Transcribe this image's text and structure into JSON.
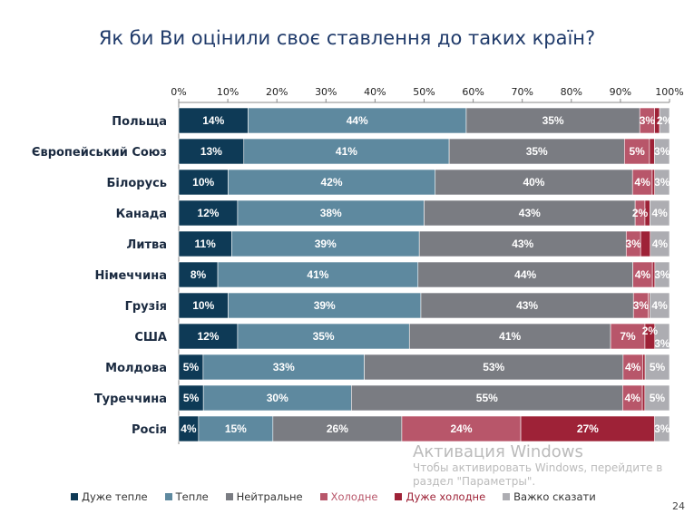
{
  "chart_data": {
    "type": "stacked-bar-horizontal",
    "title": "Як би Ви оцінили своє ставлення до таких країн?",
    "xlim": [
      0,
      100
    ],
    "x_ticks": [
      "0%",
      "10%",
      "20%",
      "30%",
      "40%",
      "50%",
      "60%",
      "70%",
      "80%",
      "90%",
      "100%"
    ],
    "legend_position": "bottom",
    "categories": [
      "Польща",
      "Європейський Союз",
      "Білорусь",
      "Канада",
      "Литва",
      "Німеччина",
      "Грузія",
      "США",
      "Молдова",
      "Туреччина",
      "Росія"
    ],
    "series": [
      {
        "name": "Дуже тепле",
        "color": "#0e3a56",
        "values": [
          14,
          13,
          10,
          12,
          11,
          8,
          10,
          12,
          5,
          5,
          4
        ],
        "labels": [
          "14%",
          "13%",
          "10%",
          "12%",
          "11%",
          "8%",
          "10%",
          "12%",
          "5%",
          "5%",
          "4%"
        ]
      },
      {
        "name": "Тепле",
        "color": "#5e899f",
        "values": [
          44,
          41,
          42,
          38,
          39,
          41,
          39,
          35,
          33,
          30,
          15
        ],
        "labels": [
          "44%",
          "41%",
          "42%",
          "38%",
          "39%",
          "41%",
          "39%",
          "35%",
          "33%",
          "30%",
          "15%"
        ]
      },
      {
        "name": "Нейтральне",
        "color": "#7a7c82",
        "values": [
          35,
          35,
          40,
          43,
          43,
          44,
          43,
          41,
          53,
          55,
          26
        ],
        "labels": [
          "35%",
          "35%",
          "40%",
          "43%",
          "43%",
          "44%",
          "43%",
          "41%",
          "53%",
          "55%",
          "26%"
        ]
      },
      {
        "name": "Холодне",
        "color": "#b8566a",
        "values": [
          3,
          5,
          4,
          2,
          3,
          4,
          3,
          7,
          4,
          4,
          24
        ],
        "labels": [
          "3%",
          "5%",
          "4%",
          "2%",
          "3%",
          "4%",
          "3%",
          "7%",
          "4%",
          "4%",
          "24%"
        ]
      },
      {
        "name": "Дуже холодне",
        "color": "#9e2237",
        "values": [
          1,
          1,
          0.5,
          1,
          2,
          0.5,
          0.3,
          2,
          0.5,
          0.5,
          27
        ],
        "labels": [
          "",
          "",
          "",
          "",
          "",
          "",
          "",
          "2%",
          "",
          "",
          "27%"
        ]
      },
      {
        "name": "Важко сказати",
        "color": "#adadb2",
        "values": [
          2,
          3,
          3,
          4,
          4,
          3,
          4,
          3,
          5,
          5,
          3
        ],
        "labels": [
          "2%",
          "3%",
          "3%",
          "4%",
          "4%",
          "3%",
          "4%",
          "3%",
          "5%",
          "5%",
          "3%"
        ]
      }
    ]
  },
  "watermark": {
    "line1": "Активация Windows",
    "line2": "Чтобы активировать Windows, перейдите в",
    "line3": "раздел \"Параметры\"."
  },
  "page_number": "24"
}
